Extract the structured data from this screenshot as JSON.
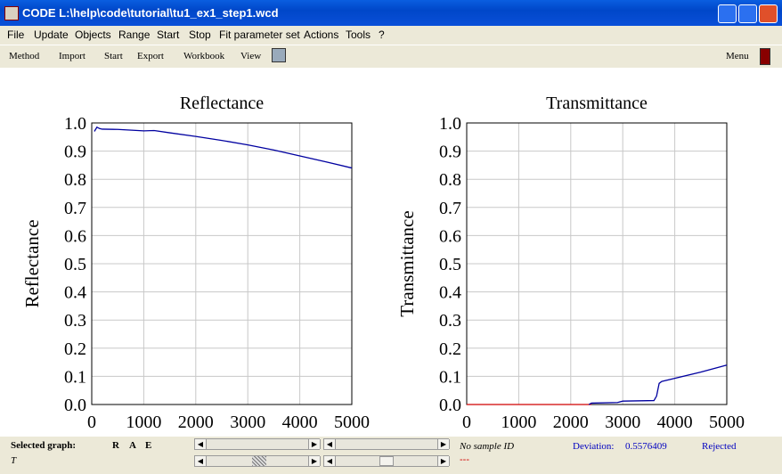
{
  "window": {
    "title": "CODE L:\\help\\code\\tutorial\\tu1_ex1_step1.wcd"
  },
  "menu": [
    "File",
    "Update",
    "Objects",
    "Range",
    "Start",
    "Stop",
    "Fit parameter set",
    "Actions",
    "Tools",
    "?"
  ],
  "toolbar": [
    "Method",
    "Import",
    "Start",
    "Export",
    "Workbook",
    "View"
  ],
  "toolbar_right": "Menu",
  "status": {
    "selected_graph": "Selected graph:",
    "graphs": [
      "R",
      "A",
      "E"
    ],
    "current_graph": "T",
    "sample": "No sample ID",
    "deviation_label": "Deviation:",
    "deviation": 0.5576409,
    "result": "Rejected",
    "marker": "---"
  },
  "chart_data": [
    {
      "type": "line",
      "title": "Reflectance",
      "ylabel": "Reflectance",
      "xlim": [
        0,
        5000
      ],
      "ylim": [
        0,
        1.0
      ],
      "xticks": [
        0,
        1000,
        2000,
        3000,
        4000,
        5000
      ],
      "yticks": [
        {
          "value": 0,
          "label": "0.0"
        },
        0.1,
        0.2,
        0.3,
        0.4,
        0.5,
        0.6,
        0.7,
        0.8,
        0.9,
        {
          "value": 1,
          "label": "1.0"
        }
      ],
      "grid": true,
      "series": [
        {
          "color": "#0000a0",
          "x": [
            50,
            100,
            150,
            200,
            500,
            1000,
            1200,
            1500,
            2000,
            2500,
            3000,
            3500,
            4000,
            4500,
            5000
          ],
          "values": [
            0.97,
            0.985,
            0.98,
            0.978,
            0.977,
            0.972,
            0.973,
            0.965,
            0.952,
            0.938,
            0.922,
            0.904,
            0.883,
            0.862,
            0.84
          ]
        }
      ]
    },
    {
      "type": "line",
      "title": "Transmittance",
      "ylabel": "Transmittance",
      "xlim": [
        0,
        5000
      ],
      "ylim": [
        0,
        1.0
      ],
      "xticks": [
        0,
        1000,
        2000,
        3000,
        4000,
        5000
      ],
      "yticks": [
        {
          "value": 0,
          "label": "0.0"
        },
        0.1,
        0.2,
        0.3,
        0.4,
        0.5,
        0.6,
        0.7,
        0.8,
        0.9,
        {
          "value": 1,
          "label": "1.0"
        }
      ],
      "grid": true,
      "series": [
        {
          "color": "#d00000",
          "x": [
            0,
            2400
          ],
          "values": [
            0,
            0
          ]
        },
        {
          "color": "#0000a0",
          "x": [
            2350,
            2400,
            2900,
            3000,
            3600,
            3650,
            3700,
            3750,
            4000,
            4500,
            5000
          ],
          "values": [
            0,
            0.005,
            0.007,
            0.012,
            0.014,
            0.03,
            0.075,
            0.082,
            0.093,
            0.115,
            0.14
          ]
        }
      ]
    }
  ]
}
